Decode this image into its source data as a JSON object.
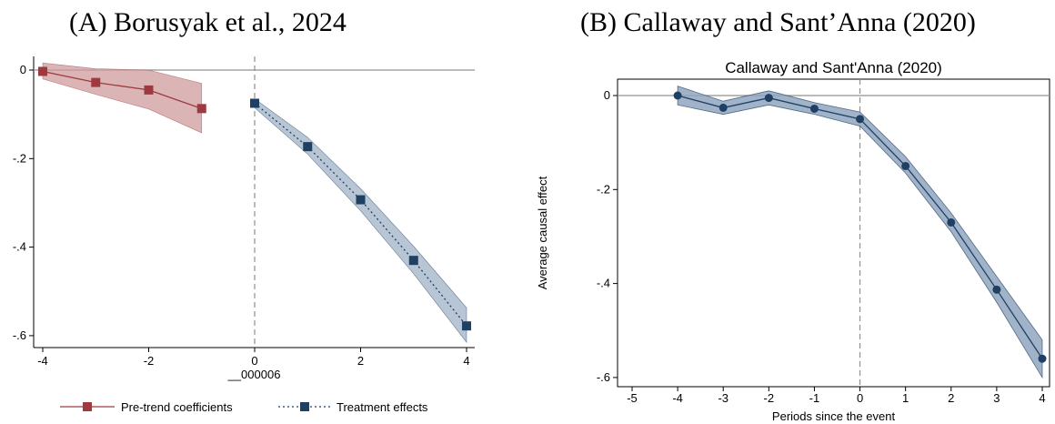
{
  "panels": {
    "a_title": "(A) Borusyak et al., 2024",
    "b_title": "(B) Callaway and Sant’Anna (2020)"
  },
  "chart_data": [
    {
      "type": "line",
      "xlabel": "__000006",
      "ylabel": "",
      "xlim": [
        -4,
        4
      ],
      "ylim": [
        -0.62,
        0.02
      ],
      "xticks": [
        -4,
        -2,
        0,
        2,
        4
      ],
      "xtick_labels": [
        "-4",
        "-2",
        "0",
        "2",
        "4"
      ],
      "yticks": [
        0,
        -0.2,
        -0.4,
        -0.6
      ],
      "ytick_labels": [
        "0",
        "-.2",
        "-.4",
        "-.6"
      ],
      "reference_lines": {
        "y": 0,
        "x": 0
      },
      "legend_position": "bottom",
      "series": [
        {
          "name": "Pre-trend coefficients",
          "color": "#9e3a3f",
          "band_color": "#cf9b9d",
          "line_style": "solid",
          "marker": "square",
          "x": [
            -4,
            -3,
            -2,
            -1
          ],
          "y": [
            -0.003,
            -0.028,
            -0.045,
            -0.087
          ],
          "lower": [
            -0.02,
            -0.055,
            -0.088,
            -0.142
          ],
          "upper": [
            0.016,
            0.003,
            0.0,
            -0.03
          ]
        },
        {
          "name": "Treatment effects",
          "color": "#1f3f63",
          "band_color": "#9fb1c6",
          "line_style": "dotted",
          "marker": "square",
          "x": [
            0,
            1,
            2,
            3,
            4
          ],
          "y": [
            -0.075,
            -0.173,
            -0.293,
            -0.43,
            -0.578
          ],
          "lower": [
            -0.085,
            -0.19,
            -0.318,
            -0.46,
            -0.615
          ],
          "upper": [
            -0.065,
            -0.152,
            -0.268,
            -0.398,
            -0.537
          ]
        }
      ]
    },
    {
      "type": "line",
      "title": "Callaway and Sant'Anna (2020)",
      "xlabel": "Periods since the event",
      "ylabel": "Average causal effect",
      "xlim": [
        -5,
        4
      ],
      "ylim": [
        -0.605,
        0.02
      ],
      "xticks": [
        -5,
        -4,
        -3,
        -2,
        -1,
        0,
        1,
        2,
        3,
        4
      ],
      "xtick_labels": [
        "-5",
        "-4",
        "-3",
        "-2",
        "-1",
        "0",
        "1",
        "2",
        "3",
        "4"
      ],
      "yticks": [
        0,
        -0.2,
        -0.4,
        -0.6
      ],
      "ytick_labels": [
        "0",
        "-.2",
        "-.4",
        "-.6"
      ],
      "reference_lines": {
        "y": 0,
        "x": 0
      },
      "series": [
        {
          "color": "#1f3f63",
          "band_color": "#8fa6c0",
          "line_style": "solid",
          "marker": "circle",
          "x": [
            -4,
            -3,
            -2,
            -1,
            0,
            1,
            2,
            3,
            4
          ],
          "y": [
            0.0,
            -0.026,
            -0.005,
            -0.028,
            -0.05,
            -0.15,
            -0.27,
            -0.413,
            -0.56
          ],
          "lower": [
            -0.02,
            -0.04,
            -0.02,
            -0.04,
            -0.065,
            -0.165,
            -0.29,
            -0.44,
            -0.6
          ],
          "upper": [
            0.02,
            -0.012,
            0.01,
            -0.015,
            -0.035,
            -0.13,
            -0.25,
            -0.385,
            -0.52
          ]
        }
      ]
    }
  ]
}
